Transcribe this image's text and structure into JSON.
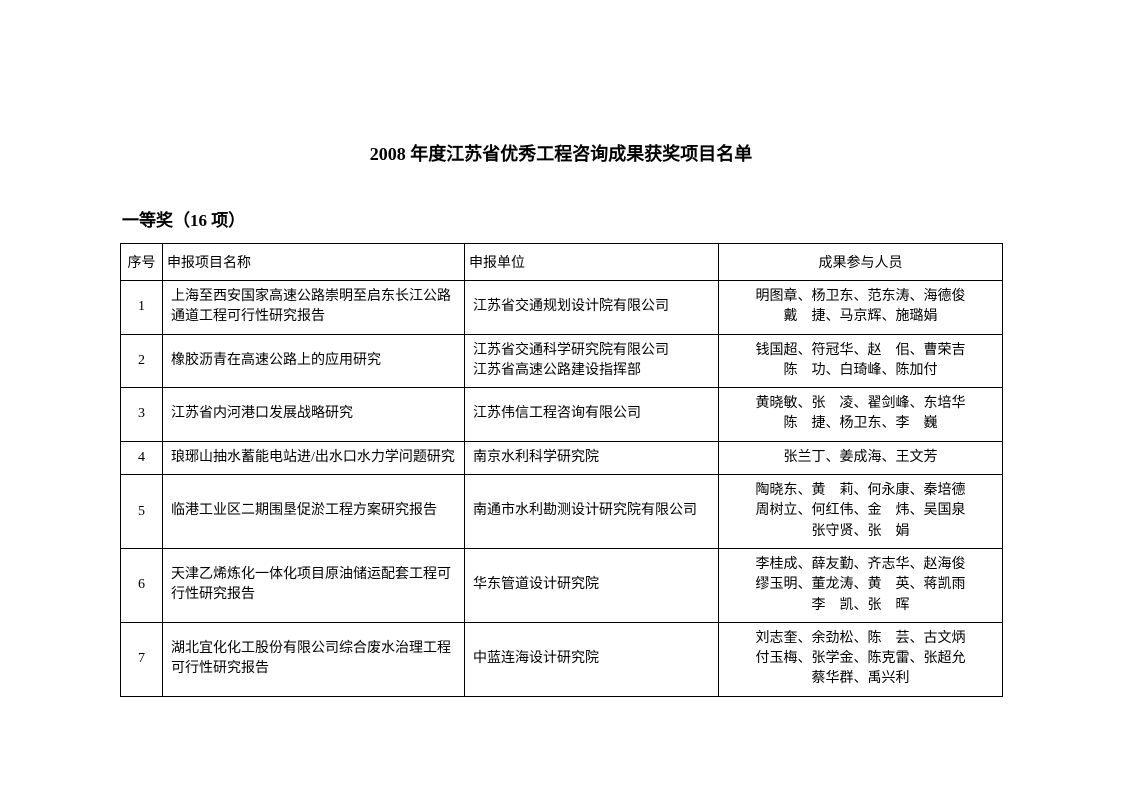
{
  "title": "2008 年度江苏省优秀工程咨询成果获奖项目名单",
  "section": "一等奖（16 项）",
  "table": {
    "columns": [
      "序号",
      "申报项目名称",
      "申报单位",
      "成果参与人员"
    ],
    "rows": [
      {
        "index": "1",
        "project": "上海至西安国家高速公路崇明至启东长江公路通道工程可行性研究报告",
        "unit": "江苏省交通规划设计院有限公司",
        "people": "明图章、杨卫东、范东涛、海德俊\n戴　捷、马京辉、施璐娟"
      },
      {
        "index": "2",
        "project": "橡胶沥青在高速公路上的应用研究",
        "unit": "江苏省交通科学研究院有限公司\n江苏省高速公路建设指挥部",
        "people": "钱国超、符冠华、赵　佀、曹荣吉\n陈　功、白琦峰、陈加付"
      },
      {
        "index": "3",
        "project": "江苏省内河港口发展战略研究",
        "unit": "江苏伟信工程咨询有限公司",
        "people": "黄晓敏、张　凌、翟剑峰、东培华\n陈　捷、杨卫东、李　巍"
      },
      {
        "index": "4",
        "project": "琅琊山抽水蓄能电站进/出水口水力学问题研究",
        "unit": "南京水利科学研究院",
        "people": "张兰丁、姜成海、王文芳"
      },
      {
        "index": "5",
        "project": "临港工业区二期围垦促淤工程方案研究报告",
        "unit": "南通市水利勘测设计研究院有限公司",
        "people": "陶晓东、黄　莉、何永康、秦培德\n周树立、何红伟、金　炜、吴国泉\n张守贤、张　娟"
      },
      {
        "index": "6",
        "project": "天津乙烯炼化一体化项目原油储运配套工程可行性研究报告",
        "unit": "华东管道设计研究院",
        "people": "李桂成、薛友勤、齐志华、赵海俊\n缪玉明、董龙涛、黄　英、蒋凯雨\n李　凯、张　晖"
      },
      {
        "index": "7",
        "project": "湖北宜化化工股份有限公司综合废水治理工程可行性研究报告",
        "unit": "中蓝连海设计研究院",
        "people": "刘志奎、余劲松、陈　芸、古文炳\n付玉梅、张学金、陈克雷、张超允\n蔡华群、禹兴利"
      }
    ]
  }
}
